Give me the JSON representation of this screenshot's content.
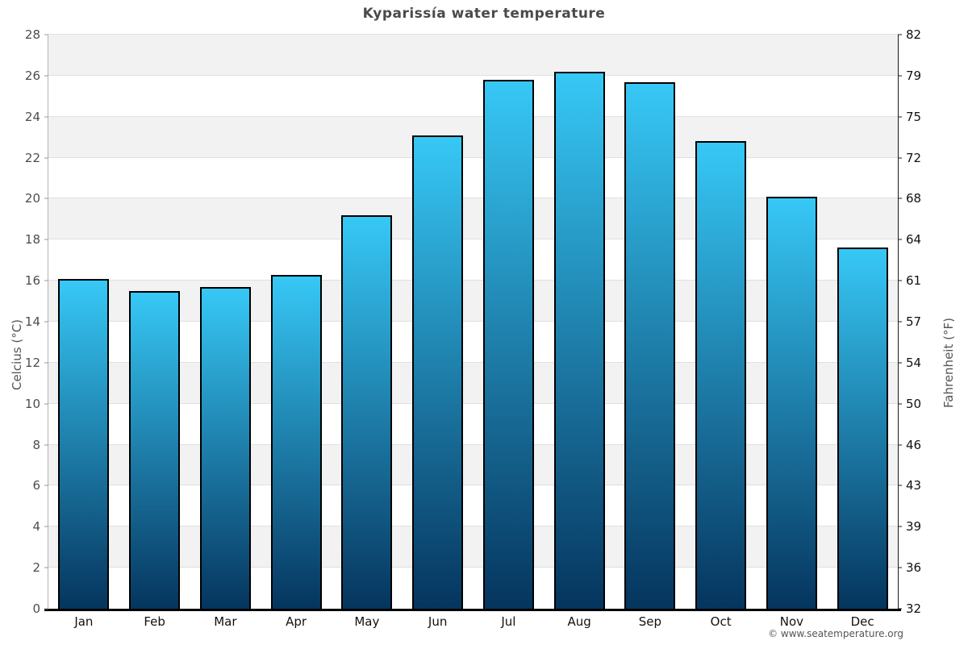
{
  "chart_data": {
    "type": "bar",
    "title": "Kyparissía water temperature",
    "ylabel_left": "Celcius (°C)",
    "ylabel_right": "Fahrenheit (°F)",
    "categories": [
      "Jan",
      "Feb",
      "Mar",
      "Apr",
      "May",
      "Jun",
      "Jul",
      "Aug",
      "Sep",
      "Oct",
      "Nov",
      "Dec"
    ],
    "values_celsius": [
      16.1,
      15.5,
      15.7,
      16.3,
      19.2,
      23.1,
      25.8,
      26.2,
      25.7,
      22.8,
      20.1,
      17.6
    ],
    "ylim_celsius": [
      0,
      28
    ],
    "celsius_ticks": [
      0,
      2,
      4,
      6,
      8,
      10,
      12,
      14,
      16,
      18,
      20,
      22,
      24,
      26,
      28
    ],
    "fahrenheit_tick_labels": [
      "32",
      "36",
      "39",
      "43",
      "46",
      "50",
      "54",
      "57",
      "61",
      "64",
      "68",
      "72",
      "75",
      "79",
      "82"
    ],
    "legend_position": "none",
    "grid": "horizontal",
    "band_colors": [
      "#ffffff",
      "#f2f2f2"
    ],
    "gridline_color": "#e0e0e0",
    "bar_color_top": "#37c8f6",
    "bar_color_bottom": "#05355e",
    "bar_border_color": "#000000",
    "title_color": "#4a4a4a"
  },
  "footer": {
    "copyright": "© www.seatemperature.org"
  }
}
